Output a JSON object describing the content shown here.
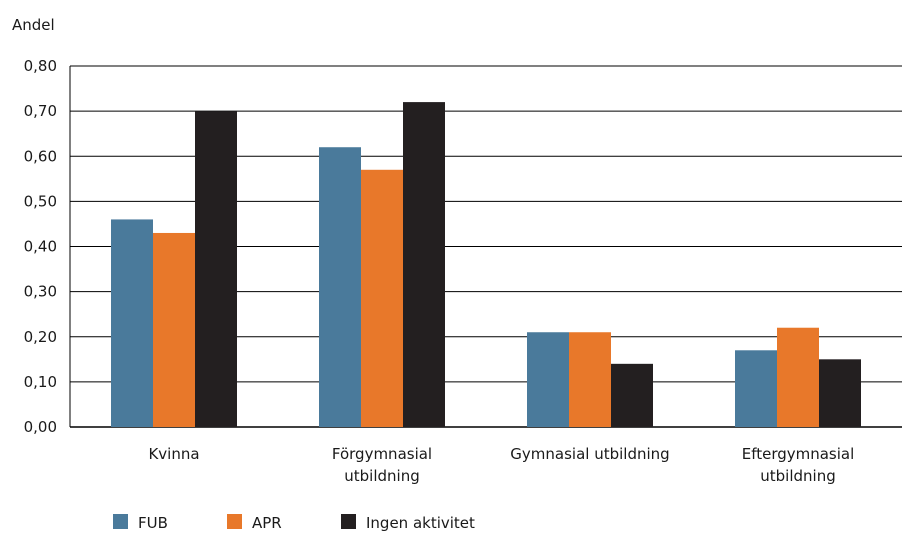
{
  "chart_data": {
    "type": "bar",
    "ylabel": "Andel",
    "ylim": [
      0,
      0.8
    ],
    "yticks": [
      "0,00",
      "0,10",
      "0,20",
      "0,30",
      "0,40",
      "0,50",
      "0,60",
      "0,70",
      "0,80"
    ],
    "categories": [
      [
        "Kvinna"
      ],
      [
        "Förgymnasial",
        "utbildning"
      ],
      [
        "Gymnasial utbildning"
      ],
      [
        "Eftergymnasial",
        "utbildning"
      ]
    ],
    "series": [
      {
        "name": "FUB",
        "color": "#4a7a9b",
        "values": [
          0.46,
          0.62,
          0.21,
          0.17
        ]
      },
      {
        "name": "APR",
        "color": "#e8782a",
        "values": [
          0.43,
          0.57,
          0.21,
          0.22
        ]
      },
      {
        "name": "Ingen aktivitet",
        "color": "#231f20",
        "values": [
          0.7,
          0.72,
          0.14,
          0.15
        ]
      }
    ],
    "grid": true,
    "legend": "bottom-left"
  }
}
